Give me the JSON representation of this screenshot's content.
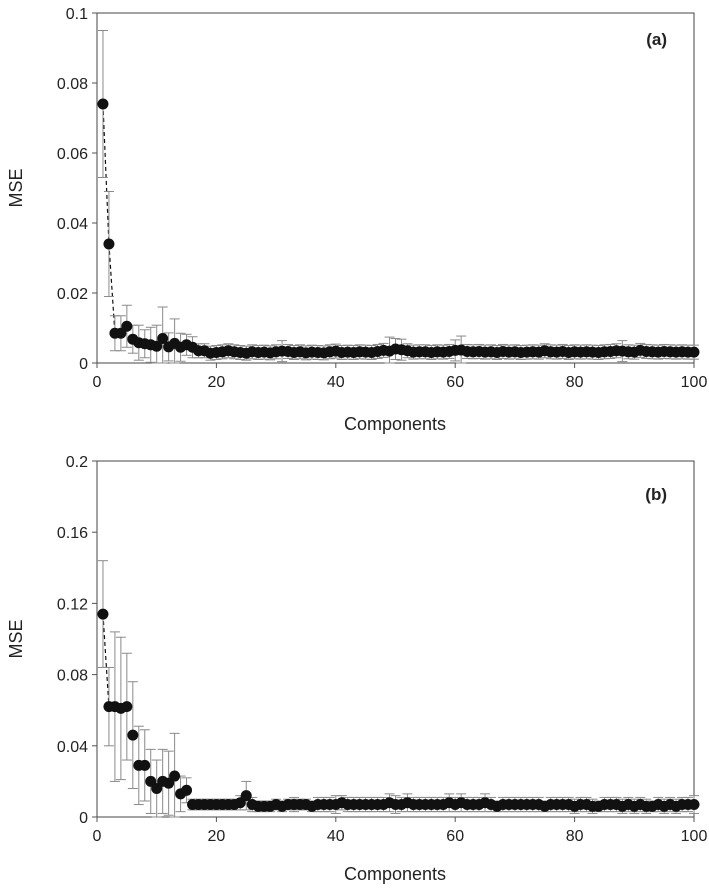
{
  "chart_data": [
    {
      "type": "scatter",
      "panel_label": "(a)",
      "xlabel": "Components",
      "ylabel": "MSE",
      "xlim": [
        0,
        100
      ],
      "ylim": [
        0,
        0.1
      ],
      "xticks": [
        "0",
        "20",
        "40",
        "60",
        "80",
        "100"
      ],
      "yticks": [
        "0",
        "0.02",
        "0.04",
        "0.06",
        "0.08",
        "0.1"
      ],
      "grid": false,
      "connect_first_points": 5,
      "x": [
        1,
        2,
        3,
        4,
        5,
        6,
        7,
        8,
        9,
        10,
        11,
        12,
        13,
        14,
        15,
        16,
        17,
        18,
        19,
        20,
        21,
        22,
        23,
        24,
        25,
        26,
        27,
        28,
        29,
        30,
        31,
        32,
        33,
        34,
        35,
        36,
        37,
        38,
        39,
        40,
        41,
        42,
        43,
        44,
        45,
        46,
        47,
        48,
        49,
        50,
        51,
        52,
        53,
        54,
        55,
        56,
        57,
        58,
        59,
        60,
        61,
        62,
        63,
        64,
        65,
        66,
        67,
        68,
        69,
        70,
        71,
        72,
        73,
        74,
        75,
        76,
        77,
        78,
        79,
        80,
        81,
        82,
        83,
        84,
        85,
        86,
        87,
        88,
        89,
        90,
        91,
        92,
        93,
        94,
        95,
        96,
        97,
        98,
        99,
        100
      ],
      "y": [
        0.074,
        0.034,
        0.0085,
        0.0085,
        0.0105,
        0.0068,
        0.0058,
        0.0055,
        0.0052,
        0.0048,
        0.007,
        0.0046,
        0.0056,
        0.0045,
        0.0052,
        0.0045,
        0.0035,
        0.0035,
        0.0028,
        0.003,
        0.0032,
        0.0035,
        0.0032,
        0.003,
        0.0028,
        0.0032,
        0.003,
        0.0031,
        0.0029,
        0.0032,
        0.0034,
        0.0033,
        0.003,
        0.0032,
        0.0029,
        0.0031,
        0.003,
        0.0029,
        0.0032,
        0.0034,
        0.003,
        0.0031,
        0.003,
        0.0032,
        0.0031,
        0.003,
        0.0033,
        0.0036,
        0.0034,
        0.004,
        0.0038,
        0.0035,
        0.0031,
        0.0032,
        0.0032,
        0.003,
        0.0032,
        0.0031,
        0.0033,
        0.0036,
        0.0037,
        0.0033,
        0.0032,
        0.0033,
        0.0031,
        0.0032,
        0.003,
        0.0033,
        0.0031,
        0.0032,
        0.003,
        0.0031,
        0.0032,
        0.0031,
        0.0035,
        0.0032,
        0.0031,
        0.0033,
        0.003,
        0.0032,
        0.0031,
        0.0032,
        0.0031,
        0.003,
        0.0032,
        0.0033,
        0.0035,
        0.0034,
        0.0032,
        0.0031,
        0.0036,
        0.0033,
        0.0032,
        0.0031,
        0.0033,
        0.0032,
        0.0031,
        0.0032,
        0.0031,
        0.0031
      ],
      "err": [
        0.021,
        0.015,
        0.005,
        0.005,
        0.006,
        0.004,
        0.005,
        0.004,
        0.005,
        0.006,
        0.009,
        0.004,
        0.007,
        0.004,
        0.003,
        0.003,
        0.002,
        0.002,
        0.002,
        0.002,
        0.002,
        0.002,
        0.002,
        0.002,
        0.002,
        0.002,
        0.002,
        0.002,
        0.002,
        0.002,
        0.003,
        0.002,
        0.002,
        0.002,
        0.002,
        0.002,
        0.002,
        0.002,
        0.002,
        0.002,
        0.002,
        0.002,
        0.002,
        0.002,
        0.002,
        0.002,
        0.002,
        0.002,
        0.004,
        0.003,
        0.003,
        0.002,
        0.002,
        0.002,
        0.002,
        0.002,
        0.002,
        0.002,
        0.002,
        0.003,
        0.004,
        0.002,
        0.002,
        0.002,
        0.002,
        0.002,
        0.002,
        0.002,
        0.002,
        0.002,
        0.002,
        0.002,
        0.002,
        0.002,
        0.002,
        0.002,
        0.002,
        0.002,
        0.002,
        0.002,
        0.002,
        0.002,
        0.002,
        0.002,
        0.002,
        0.002,
        0.002,
        0.003,
        0.002,
        0.002,
        0.002,
        0.002,
        0.002,
        0.002,
        0.002,
        0.002,
        0.002,
        0.002,
        0.002,
        0.002
      ]
    },
    {
      "type": "scatter",
      "panel_label": "(b)",
      "xlabel": "Components",
      "ylabel": "MSE",
      "xlim": [
        0,
        100
      ],
      "ylim": [
        0,
        0.2
      ],
      "xticks": [
        "0",
        "20",
        "40",
        "60",
        "80",
        "100"
      ],
      "yticks": [
        "0",
        "0.04",
        "0.08",
        "0.12",
        "0.16",
        "0.2"
      ],
      "grid": false,
      "connect_first_points": 2,
      "x": [
        1,
        2,
        3,
        4,
        5,
        6,
        7,
        8,
        9,
        10,
        11,
        12,
        13,
        14,
        15,
        16,
        17,
        18,
        19,
        20,
        21,
        22,
        23,
        24,
        25,
        26,
        27,
        28,
        29,
        30,
        31,
        32,
        33,
        34,
        35,
        36,
        37,
        38,
        39,
        40,
        41,
        42,
        43,
        44,
        45,
        46,
        47,
        48,
        49,
        50,
        51,
        52,
        53,
        54,
        55,
        56,
        57,
        58,
        59,
        60,
        61,
        62,
        63,
        64,
        65,
        66,
        67,
        68,
        69,
        70,
        71,
        72,
        73,
        74,
        75,
        76,
        77,
        78,
        79,
        80,
        81,
        82,
        83,
        84,
        85,
        86,
        87,
        88,
        89,
        90,
        91,
        92,
        93,
        94,
        95,
        96,
        97,
        98,
        99,
        100
      ],
      "y": [
        0.114,
        0.062,
        0.062,
        0.061,
        0.062,
        0.046,
        0.029,
        0.029,
        0.02,
        0.016,
        0.02,
        0.019,
        0.023,
        0.013,
        0.015,
        0.007,
        0.007,
        0.007,
        0.007,
        0.007,
        0.007,
        0.007,
        0.007,
        0.008,
        0.012,
        0.007,
        0.006,
        0.006,
        0.006,
        0.007,
        0.006,
        0.007,
        0.007,
        0.007,
        0.007,
        0.006,
        0.007,
        0.007,
        0.007,
        0.007,
        0.008,
        0.007,
        0.007,
        0.007,
        0.007,
        0.007,
        0.007,
        0.007,
        0.008,
        0.007,
        0.007,
        0.008,
        0.007,
        0.007,
        0.007,
        0.007,
        0.007,
        0.007,
        0.008,
        0.007,
        0.008,
        0.007,
        0.007,
        0.007,
        0.008,
        0.007,
        0.006,
        0.007,
        0.007,
        0.007,
        0.007,
        0.007,
        0.007,
        0.007,
        0.006,
        0.007,
        0.007,
        0.007,
        0.007,
        0.006,
        0.007,
        0.007,
        0.006,
        0.006,
        0.007,
        0.007,
        0.007,
        0.006,
        0.007,
        0.006,
        0.007,
        0.006,
        0.006,
        0.007,
        0.006,
        0.007,
        0.006,
        0.007,
        0.007,
        0.007
      ],
      "err": [
        0.03,
        0.022,
        0.042,
        0.04,
        0.03,
        0.03,
        0.022,
        0.02,
        0.018,
        0.016,
        0.018,
        0.018,
        0.024,
        0.01,
        0.007,
        0.003,
        0.003,
        0.003,
        0.003,
        0.003,
        0.003,
        0.003,
        0.003,
        0.004,
        0.008,
        0.004,
        0.003,
        0.003,
        0.003,
        0.003,
        0.003,
        0.003,
        0.004,
        0.003,
        0.003,
        0.003,
        0.004,
        0.004,
        0.004,
        0.005,
        0.004,
        0.004,
        0.004,
        0.004,
        0.004,
        0.004,
        0.004,
        0.004,
        0.005,
        0.005,
        0.004,
        0.005,
        0.004,
        0.004,
        0.004,
        0.004,
        0.004,
        0.004,
        0.005,
        0.004,
        0.005,
        0.004,
        0.004,
        0.004,
        0.005,
        0.004,
        0.003,
        0.004,
        0.004,
        0.004,
        0.004,
        0.004,
        0.004,
        0.004,
        0.003,
        0.004,
        0.004,
        0.004,
        0.004,
        0.004,
        0.004,
        0.004,
        0.004,
        0.003,
        0.004,
        0.004,
        0.004,
        0.004,
        0.004,
        0.004,
        0.004,
        0.004,
        0.003,
        0.004,
        0.004,
        0.004,
        0.004,
        0.004,
        0.004,
        0.005
      ]
    }
  ],
  "colors": {
    "marker": "#111111",
    "errorbar": "#8a8a8a",
    "axis": "#555555",
    "frame": "#444444"
  }
}
